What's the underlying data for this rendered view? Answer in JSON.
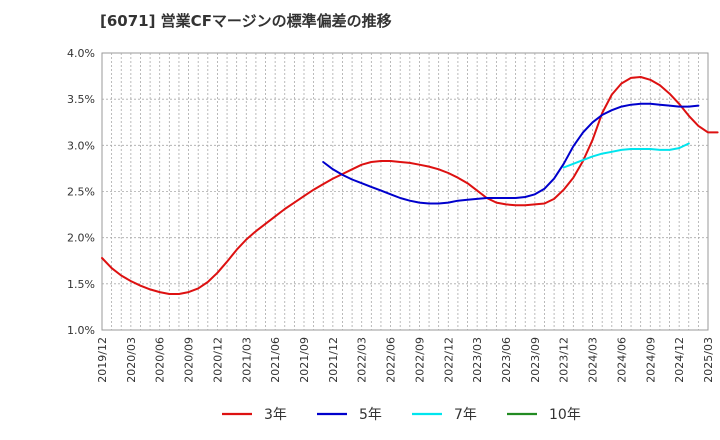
{
  "chart_data": {
    "type": "line",
    "title": "[6071]  営業CFマージンの標準偏差の推移",
    "xlabel": "",
    "ylabel": "",
    "ylim": [
      1.0,
      4.0
    ],
    "y_ticks": [
      "1.0%",
      "1.5%",
      "2.0%",
      "2.5%",
      "3.0%",
      "3.5%",
      "4.0%"
    ],
    "x_ticks": [
      "2019/12",
      "2020/03",
      "2020/06",
      "2020/09",
      "2020/12",
      "2021/03",
      "2021/06",
      "2021/09",
      "2021/12",
      "2022/03",
      "2022/06",
      "2022/09",
      "2022/12",
      "2023/03",
      "2023/06",
      "2023/09",
      "2023/12",
      "2024/03",
      "2024/06",
      "2024/09",
      "2024/12",
      "2025/03"
    ],
    "grid": true,
    "legend_placement": "bottom",
    "series": [
      {
        "name": "3年",
        "color": "#dd1111",
        "start": "2019/12",
        "values": [
          1.78,
          1.67,
          1.59,
          1.53,
          1.48,
          1.44,
          1.41,
          1.39,
          1.39,
          1.41,
          1.45,
          1.52,
          1.62,
          1.74,
          1.87,
          1.98,
          2.07,
          2.15,
          2.23,
          2.31,
          2.38,
          2.45,
          2.52,
          2.58,
          2.64,
          2.69,
          2.74,
          2.79,
          2.82,
          2.83,
          2.83,
          2.82,
          2.81,
          2.79,
          2.77,
          2.74,
          2.7,
          2.65,
          2.59,
          2.51,
          2.43,
          2.38,
          2.36,
          2.35,
          2.35,
          2.36,
          2.37,
          2.42,
          2.52,
          2.65,
          2.83,
          3.06,
          3.35,
          3.55,
          3.67,
          3.73,
          3.74,
          3.71,
          3.65,
          3.56,
          3.45,
          3.32,
          3.21,
          3.14,
          3.14
        ]
      },
      {
        "name": "5年",
        "color": "#0000cc",
        "start": "2021/11",
        "values": [
          2.82,
          2.74,
          2.68,
          2.63,
          2.59,
          2.55,
          2.51,
          2.47,
          2.43,
          2.4,
          2.38,
          2.37,
          2.37,
          2.38,
          2.4,
          2.41,
          2.42,
          2.43,
          2.43,
          2.43,
          2.43,
          2.44,
          2.47,
          2.53,
          2.64,
          2.8,
          2.99,
          3.14,
          3.25,
          3.33,
          3.38,
          3.42,
          3.44,
          3.45,
          3.45,
          3.44,
          3.43,
          3.42,
          3.42,
          3.43
        ]
      },
      {
        "name": "7年",
        "color": "#00e5ee",
        "start": "2023/12",
        "values": [
          2.76,
          2.8,
          2.84,
          2.88,
          2.91,
          2.93,
          2.95,
          2.96,
          2.96,
          2.96,
          2.95,
          2.95,
          2.97,
          3.02
        ]
      },
      {
        "name": "10年",
        "color": "#228b22",
        "start": "",
        "values": []
      }
    ]
  }
}
